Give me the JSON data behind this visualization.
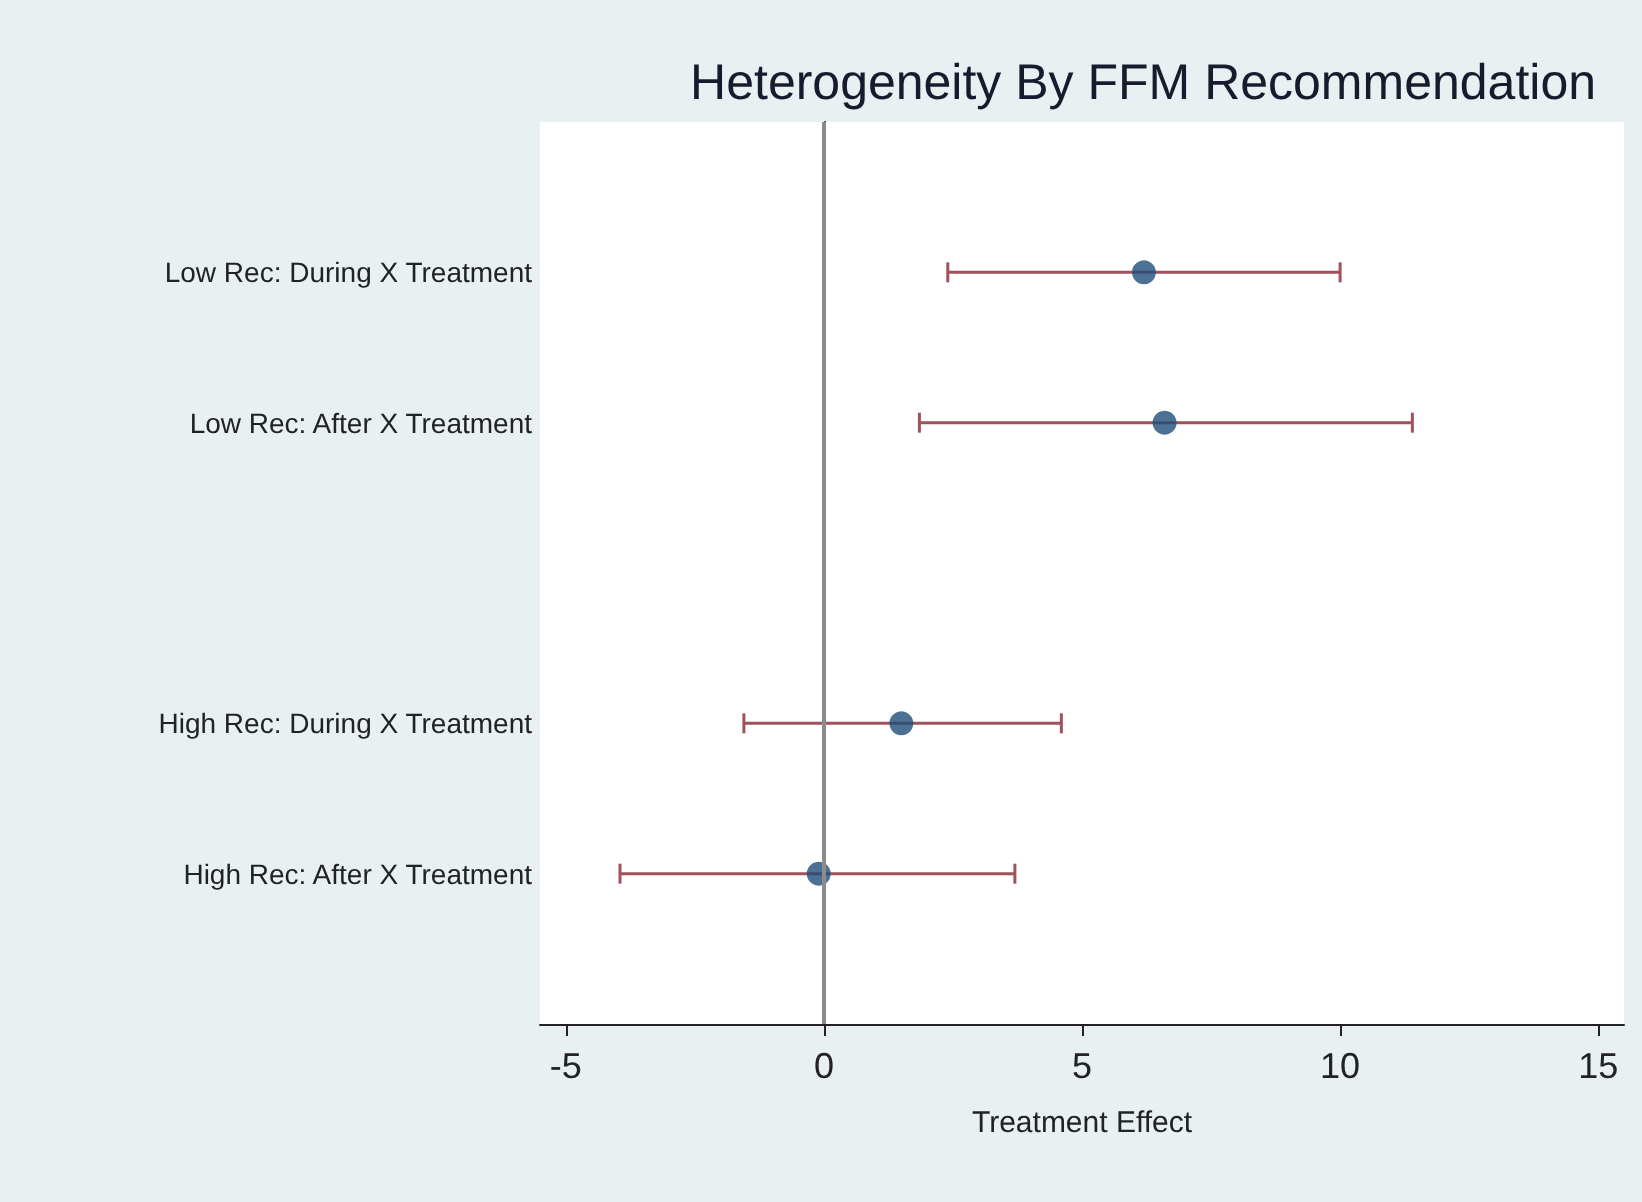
{
  "chart_data": {
    "type": "scatter",
    "orientation": "horizontal",
    "title": "Heterogeneity By FFM Recommendation",
    "xlabel": "Treatment Effect",
    "categories": [
      null,
      "Low Rec: During X Treatment",
      "Low Rec: After X Treatment",
      null,
      "High Rec: During X Treatment",
      "High Rec: After X Treatment",
      null
    ],
    "series": [
      {
        "color": "#1f4e79",
        "values": [
          null,
          6.2,
          6.6,
          null,
          1.5,
          -0.1,
          null
        ],
        "errors": [
          null,
          [
            2.4,
            10.0
          ],
          [
            1.85,
            11.4
          ],
          null,
          [
            -1.55,
            4.6
          ],
          [
            -3.95,
            3.7
          ],
          null
        ]
      }
    ],
    "xlim": [
      -5.5,
      15.5
    ],
    "xticks": [
      -5,
      0,
      5,
      10,
      15
    ],
    "ref_lines": [
      {
        "axis": "x",
        "value": 0,
        "color": "#8c8c8c"
      }
    ],
    "grid": false,
    "marker": "circle"
  }
}
